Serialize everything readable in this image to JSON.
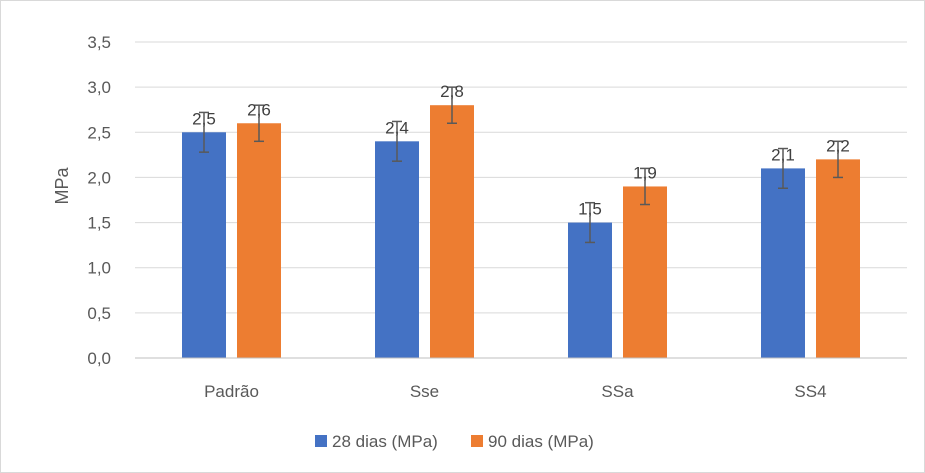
{
  "chart_data": {
    "type": "bar",
    "categories": [
      "Padrão",
      "Sse",
      "SSa",
      "SS4"
    ],
    "series": [
      {
        "name": "28 dias (MPa)",
        "values": [
          2.5,
          2.4,
          1.5,
          2.1
        ],
        "labels": [
          "2,5",
          "2,4",
          "1,5",
          "2,1"
        ],
        "error": [
          0.22,
          0.22,
          0.22,
          0.22
        ],
        "color": "#4472c4"
      },
      {
        "name": "90 dias (MPa)",
        "values": [
          2.6,
          2.8,
          1.9,
          2.2
        ],
        "labels": [
          "2,6",
          "2,8",
          "1,9",
          "2,2"
        ],
        "error": [
          0.2,
          0.2,
          0.2,
          0.2
        ],
        "color": "#ed7d31"
      }
    ],
    "title": "",
    "xlabel": "",
    "ylabel": "MPa",
    "ylim": [
      0,
      3.5
    ],
    "yticks": [
      0,
      0.5,
      1,
      1.5,
      2,
      2.5,
      3,
      3.5
    ],
    "ytick_labels": [
      "0,0",
      "0,5",
      "1,0",
      "1,5",
      "2,0",
      "2,5",
      "3,0",
      "3,5"
    ],
    "grid": true,
    "legend": "bottom",
    "error_bar_color": "#595959",
    "grid_color": "#d9d9d9"
  }
}
